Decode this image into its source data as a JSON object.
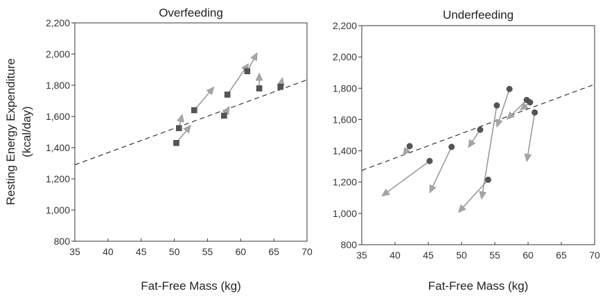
{
  "y_axis_label_line1": "Resting Energy Expenditure",
  "y_axis_label_line2": "(kcal/day)",
  "chart_data": [
    {
      "type": "scatter",
      "title": "Overfeeding",
      "xlabel": "Fat-Free Mass (kg)",
      "ylabel": "Resting Energy Expenditure (kcal/day)",
      "xlim": [
        35,
        70
      ],
      "ylim": [
        800,
        2200
      ],
      "x_ticks": [
        "35",
        "40",
        "45",
        "50",
        "55",
        "60",
        "65",
        "70"
      ],
      "y_ticks": [
        "800",
        "1,000",
        "1,200",
        "1,400",
        "1,600",
        "1,800",
        "2,000",
        "2,200"
      ],
      "marker": "square",
      "trend_line": {
        "style": "dashed",
        "from": [
          35,
          1290
        ],
        "to": [
          70,
          1835
        ]
      },
      "points": [
        {
          "x": 50.3,
          "y": 1430,
          "arrow_to": [
            52.5,
            1545
          ]
        },
        {
          "x": 50.7,
          "y": 1525,
          "arrow_to": [
            51.2,
            1615
          ]
        },
        {
          "x": 53.0,
          "y": 1640,
          "arrow_to": [
            56.0,
            1790
          ]
        },
        {
          "x": 57.5,
          "y": 1605,
          "arrow_to": [
            58.3,
            1665
          ]
        },
        {
          "x": 58.0,
          "y": 1740,
          "arrow_to": [
            61.2,
            1940
          ]
        },
        {
          "x": 61.0,
          "y": 1890,
          "arrow_to": [
            62.5,
            2010
          ]
        },
        {
          "x": 62.8,
          "y": 1780,
          "arrow_to": [
            62.8,
            1880
          ]
        },
        {
          "x": 66.0,
          "y": 1790,
          "arrow_to": [
            66.3,
            1850
          ]
        }
      ]
    },
    {
      "type": "scatter",
      "title": "Underfeeding",
      "xlabel": "Fat-Free Mass (kg)",
      "ylabel": "",
      "xlim": [
        35,
        70
      ],
      "ylim": [
        800,
        2200
      ],
      "x_ticks": [
        "35",
        "40",
        "45",
        "50",
        "55",
        "60",
        "65",
        "70"
      ],
      "y_ticks": [
        "800",
        "1,000",
        "1,200",
        "1,400",
        "1,600",
        "1,800",
        "2,000",
        "2,200"
      ],
      "marker": "circle",
      "trend_line": {
        "style": "dashed",
        "from": [
          35,
          1275
        ],
        "to": [
          70,
          1825
        ]
      },
      "points": [
        {
          "x": 42.2,
          "y": 1430,
          "arrow_to": [
            41.2,
            1370
          ]
        },
        {
          "x": 45.2,
          "y": 1335,
          "arrow_to": [
            38.0,
            1110
          ]
        },
        {
          "x": 48.5,
          "y": 1425,
          "arrow_to": [
            45.2,
            1130
          ]
        },
        {
          "x": 52.8,
          "y": 1535,
          "arrow_to": [
            51.0,
            1420
          ]
        },
        {
          "x": 54.0,
          "y": 1215,
          "arrow_to": [
            49.5,
            1005
          ]
        },
        {
          "x": 55.3,
          "y": 1690,
          "arrow_to": [
            53.0,
            1090
          ]
        },
        {
          "x": 57.2,
          "y": 1795,
          "arrow_to": [
            55.3,
            1550
          ]
        },
        {
          "x": 59.8,
          "y": 1725,
          "arrow_to": [
            56.8,
            1600
          ]
        },
        {
          "x": 60.3,
          "y": 1710,
          "arrow_to": [
            58.8,
            1660
          ]
        },
        {
          "x": 61.0,
          "y": 1645,
          "arrow_to": [
            59.8,
            1330
          ]
        }
      ]
    }
  ]
}
